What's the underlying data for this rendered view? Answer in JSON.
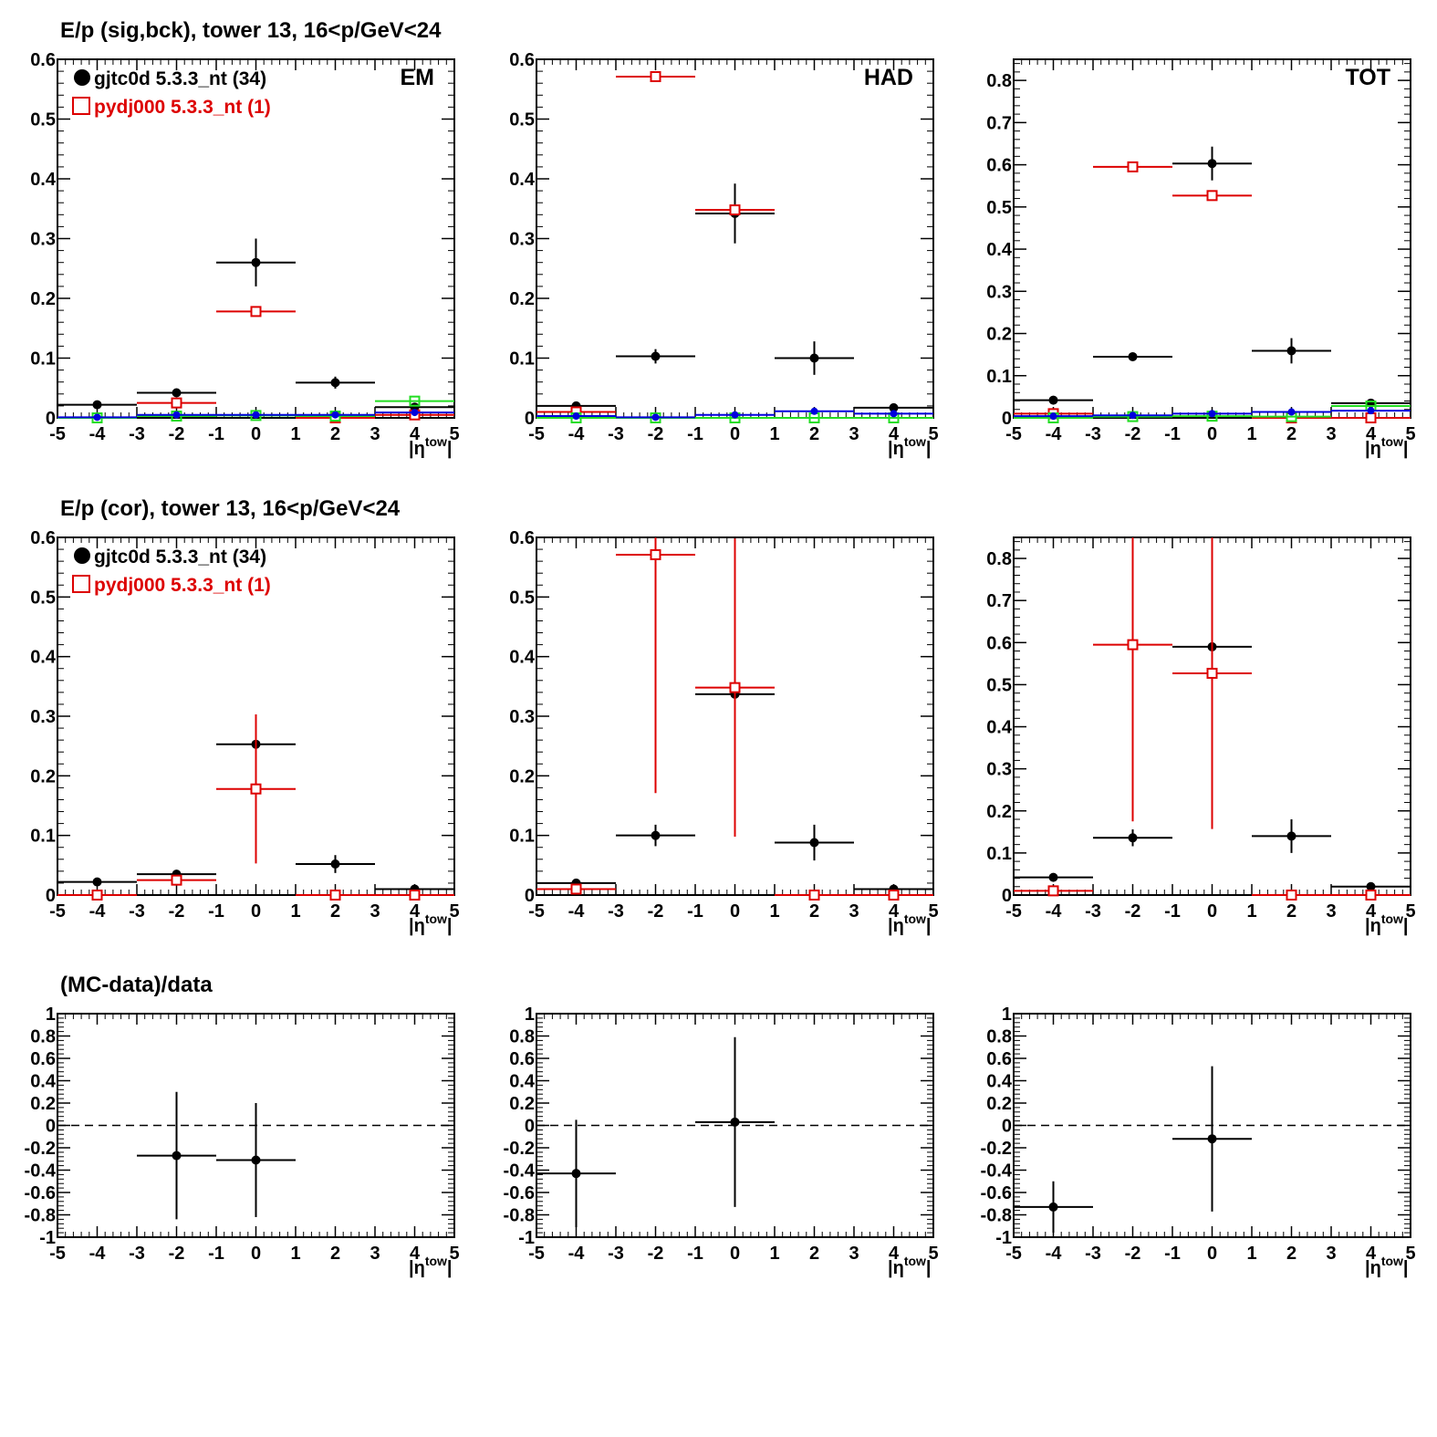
{
  "row_titles": {
    "top": "E/p (sig,bck), tower 13, 16<p/GeV<24",
    "middle": "E/p (cor), tower 13, 16<p/GeV<24",
    "bottom": "(MC-data)/data"
  },
  "legend": {
    "data_label": "gjtc0d 5.3.3_nt (34)",
    "mc_label": "pydj000 5.3.3_nt (1)"
  },
  "colors": {
    "data": "#000000",
    "mc": "#dd0000",
    "green": "#22dd22",
    "blue": "#0000dd"
  },
  "chart_data": [
    {
      "id": "r1c1",
      "type": "scatter",
      "panel_label": "EM",
      "xlabel": "|η^tow|",
      "xlim": [
        -5,
        5
      ],
      "ylim": [
        0,
        0.6
      ],
      "yticks": [
        "0",
        "0.1",
        "0.2",
        "0.3",
        "0.4",
        "0.5",
        "0.6"
      ],
      "series": [
        {
          "name": "gjtc0d 5.3.3_nt (34)",
          "style": "data",
          "x": [
            -4,
            -2,
            0,
            2,
            4
          ],
          "y": [
            0.022,
            0.042,
            0.26,
            0.059,
            0.018
          ],
          "yerr": [
            0.006,
            0.006,
            0.04,
            0.01,
            0.004
          ]
        },
        {
          "name": "pydj000 5.3.3_nt (1)",
          "style": "mc",
          "x": [
            -4,
            -2,
            0,
            2,
            4
          ],
          "y": [
            0.0,
            0.025,
            0.178,
            0.0,
            0.005
          ],
          "yerr": [
            0,
            0.003,
            0.003,
            0,
            0
          ]
        },
        {
          "style": "green",
          "x": [
            -4,
            -2,
            0,
            2,
            4
          ],
          "y": [
            0.0,
            0.003,
            0.004,
            0.003,
            0.028
          ],
          "yerr": [
            0,
            0,
            0,
            0,
            0
          ]
        },
        {
          "style": "blue",
          "x": [
            -4,
            -2,
            0,
            2,
            4
          ],
          "y": [
            0.001,
            0.005,
            0.005,
            0.005,
            0.009
          ],
          "yerr": [
            0,
            0,
            0,
            0,
            0
          ]
        }
      ]
    },
    {
      "id": "r1c2",
      "type": "scatter",
      "panel_label": "HAD",
      "xlabel": "|η^tow|",
      "xlim": [
        -5,
        5
      ],
      "ylim": [
        0,
        0.6
      ],
      "yticks": [
        "0",
        "0.1",
        "0.2",
        "0.3",
        "0.4",
        "0.5",
        "0.6"
      ],
      "series": [
        {
          "style": "data",
          "x": [
            -4,
            -2,
            0,
            2,
            4
          ],
          "y": [
            0.02,
            0.103,
            0.342,
            0.1,
            0.017
          ],
          "yerr": [
            0.004,
            0.012,
            0.05,
            0.028,
            0.004
          ]
        },
        {
          "style": "mc",
          "x": [
            -4,
            -2,
            0,
            2,
            4
          ],
          "y": [
            0.01,
            0.571,
            0.348,
            0.0,
            0.0
          ],
          "yerr": [
            0,
            0.004,
            0.004,
            0,
            0
          ]
        },
        {
          "style": "green",
          "x": [
            -4,
            -2,
            0,
            2,
            4
          ],
          "y": [
            0.0,
            0.0,
            0.0,
            0.0,
            0.0
          ],
          "yerr": [
            0,
            0,
            0,
            0,
            0
          ]
        },
        {
          "style": "blue",
          "x": [
            -4,
            -2,
            0,
            2,
            4
          ],
          "y": [
            0.003,
            0.001,
            0.005,
            0.011,
            0.007
          ],
          "yerr": [
            0,
            0,
            0,
            0,
            0
          ]
        }
      ]
    },
    {
      "id": "r1c3",
      "type": "scatter",
      "panel_label": "TOT",
      "xlabel": "|η^tow|",
      "xlim": [
        -5,
        5
      ],
      "ylim": [
        0,
        0.85
      ],
      "yticks": [
        "0",
        "0.1",
        "0.2",
        "0.3",
        "0.4",
        "0.5",
        "0.6",
        "0.7",
        "0.8"
      ],
      "series": [
        {
          "style": "data",
          "x": [
            -4,
            -2,
            0,
            2,
            4
          ],
          "y": [
            0.042,
            0.145,
            0.603,
            0.159,
            0.035
          ],
          "yerr": [
            0.01,
            0.01,
            0.04,
            0.03,
            0.005
          ]
        },
        {
          "style": "mc",
          "x": [
            -4,
            -2,
            0,
            2,
            4
          ],
          "y": [
            0.01,
            0.595,
            0.527,
            0.0,
            0.0
          ],
          "yerr": [
            0,
            0.004,
            0.004,
            0,
            0
          ]
        },
        {
          "style": "green",
          "x": [
            -4,
            -2,
            0,
            2,
            4
          ],
          "y": [
            0.0,
            0.003,
            0.004,
            0.003,
            0.028
          ],
          "yerr": [
            0,
            0,
            0,
            0,
            0
          ]
        },
        {
          "style": "blue",
          "x": [
            -4,
            -2,
            0,
            2,
            4
          ],
          "y": [
            0.004,
            0.006,
            0.01,
            0.014,
            0.017
          ],
          "yerr": [
            0,
            0,
            0,
            0,
            0
          ]
        }
      ]
    },
    {
      "id": "r2c1",
      "type": "scatter",
      "panel_label": "",
      "xlabel": "|η^tow|",
      "xlim": [
        -5,
        5
      ],
      "ylim": [
        0,
        0.6
      ],
      "yticks": [
        "0",
        "0.1",
        "0.2",
        "0.3",
        "0.4",
        "0.5",
        "0.6"
      ],
      "series": [
        {
          "style": "data",
          "x": [
            -4,
            -2,
            0,
            2,
            4
          ],
          "y": [
            0.022,
            0.035,
            0.253,
            0.052,
            0.01
          ],
          "yerr": [
            0.006,
            0.006,
            0.05,
            0.015,
            0.004
          ]
        },
        {
          "style": "mc",
          "x": [
            -4,
            -2,
            0,
            2,
            4
          ],
          "y": [
            0.0,
            0.025,
            0.178,
            0.0,
            0.0
          ],
          "yerr": [
            0,
            0.003,
            0.125,
            0,
            0
          ]
        }
      ]
    },
    {
      "id": "r2c2",
      "type": "scatter",
      "panel_label": "",
      "xlabel": "|η^tow|",
      "xlim": [
        -5,
        5
      ],
      "ylim": [
        0,
        0.6
      ],
      "yticks": [
        "0",
        "0.1",
        "0.2",
        "0.3",
        "0.4",
        "0.5",
        "0.6"
      ],
      "series": [
        {
          "style": "data",
          "x": [
            -4,
            -2,
            0,
            2,
            4
          ],
          "y": [
            0.02,
            0.1,
            0.337,
            0.088,
            0.01
          ],
          "yerr": [
            0.004,
            0.018,
            0.06,
            0.03,
            0.004
          ]
        },
        {
          "style": "mc",
          "x": [
            -4,
            -2,
            0,
            2,
            4
          ],
          "y": [
            0.01,
            0.571,
            0.348,
            0.0,
            0.0
          ],
          "yerr": [
            0,
            0.4,
            0.25,
            0,
            0
          ]
        }
      ]
    },
    {
      "id": "r2c3",
      "type": "scatter",
      "panel_label": "",
      "xlabel": "|η^tow|",
      "xlim": [
        -5,
        5
      ],
      "ylim": [
        0,
        0.85
      ],
      "yticks": [
        "0",
        "0.1",
        "0.2",
        "0.3",
        "0.4",
        "0.5",
        "0.6",
        "0.7",
        "0.8"
      ],
      "series": [
        {
          "style": "data",
          "x": [
            -4,
            -2,
            0,
            2,
            4
          ],
          "y": [
            0.042,
            0.136,
            0.59,
            0.14,
            0.02
          ],
          "yerr": [
            0.01,
            0.02,
            0.08,
            0.04,
            0.005
          ]
        },
        {
          "style": "mc",
          "x": [
            -4,
            -2,
            0,
            2,
            4
          ],
          "y": [
            0.01,
            0.595,
            0.527,
            0.0,
            0.0
          ],
          "yerr": [
            0,
            0.42,
            0.37,
            0,
            0
          ]
        }
      ]
    },
    {
      "id": "r3c1",
      "type": "scatter",
      "panel_label": "",
      "xlabel": "|η^tow|",
      "xlim": [
        -5,
        5
      ],
      "ylim": [
        -1,
        1
      ],
      "yticks": [
        "-1",
        "-0.8",
        "-0.6",
        "-0.4",
        "-0.2",
        "0",
        "0.2",
        "0.4",
        "0.6",
        "0.8",
        "1"
      ],
      "series": [
        {
          "style": "data",
          "x": [
            -2,
            0
          ],
          "y": [
            -0.27,
            -0.31
          ],
          "yerr": [
            0.57,
            0.51
          ]
        }
      ]
    },
    {
      "id": "r3c2",
      "type": "scatter",
      "panel_label": "",
      "xlabel": "|η^tow|",
      "xlim": [
        -5,
        5
      ],
      "ylim": [
        -1,
        1
      ],
      "yticks": [
        "-1",
        "-0.8",
        "-0.6",
        "-0.4",
        "-0.2",
        "0",
        "0.2",
        "0.4",
        "0.6",
        "0.8",
        "1"
      ],
      "series": [
        {
          "style": "data",
          "x": [
            -4,
            0
          ],
          "y": [
            -0.43,
            0.03
          ],
          "yerr": [
            0.48,
            0.76
          ]
        }
      ]
    },
    {
      "id": "r3c3",
      "type": "scatter",
      "panel_label": "",
      "xlabel": "|η^tow|",
      "xlim": [
        -5,
        5
      ],
      "ylim": [
        -1,
        1
      ],
      "yticks": [
        "-1",
        "-0.8",
        "-0.6",
        "-0.4",
        "-0.2",
        "0",
        "0.2",
        "0.4",
        "0.6",
        "0.8",
        "1"
      ],
      "series": [
        {
          "style": "data",
          "x": [
            -4,
            0
          ],
          "y": [
            -0.73,
            -0.12
          ],
          "yerr": [
            0.23,
            0.65
          ]
        }
      ]
    }
  ]
}
